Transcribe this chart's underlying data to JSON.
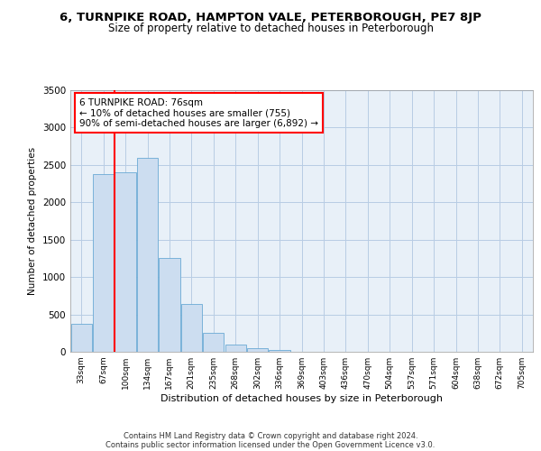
{
  "title1": "6, TURNPIKE ROAD, HAMPTON VALE, PETERBOROUGH, PE7 8JP",
  "title2": "Size of property relative to detached houses in Peterborough",
  "xlabel": "Distribution of detached houses by size in Peterborough",
  "ylabel": "Number of detached properties",
  "categories": [
    "33sqm",
    "67sqm",
    "100sqm",
    "134sqm",
    "167sqm",
    "201sqm",
    "235sqm",
    "268sqm",
    "302sqm",
    "336sqm",
    "369sqm",
    "403sqm",
    "436sqm",
    "470sqm",
    "504sqm",
    "537sqm",
    "571sqm",
    "604sqm",
    "638sqm",
    "672sqm",
    "705sqm"
  ],
  "values": [
    380,
    2380,
    2400,
    2600,
    1250,
    640,
    250,
    100,
    50,
    30,
    0,
    0,
    0,
    0,
    0,
    0,
    0,
    0,
    0,
    0,
    0
  ],
  "bar_color": "#ccddf0",
  "bar_edge_color": "#6aaad4",
  "grid_color": "#b8cce4",
  "background_color": "#e8f0f8",
  "annotation_line1": "6 TURNPIKE ROAD: 76sqm",
  "annotation_line2": "← 10% of detached houses are smaller (755)",
  "annotation_line3": "90% of semi-detached houses are larger (6,892) →",
  "red_line_x": 1.5,
  "ylim": [
    0,
    3500
  ],
  "yticks": [
    0,
    500,
    1000,
    1500,
    2000,
    2500,
    3000,
    3500
  ],
  "footer_line1": "Contains HM Land Registry data © Crown copyright and database right 2024.",
  "footer_line2": "Contains public sector information licensed under the Open Government Licence v3.0.",
  "title1_fontsize": 9.5,
  "title2_fontsize": 8.5,
  "xlabel_fontsize": 8,
  "ylabel_fontsize": 7.5,
  "tick_fontsize": 7.5,
  "xtick_fontsize": 6.5,
  "annotation_fontsize": 7.5,
  "footer_fontsize": 6
}
